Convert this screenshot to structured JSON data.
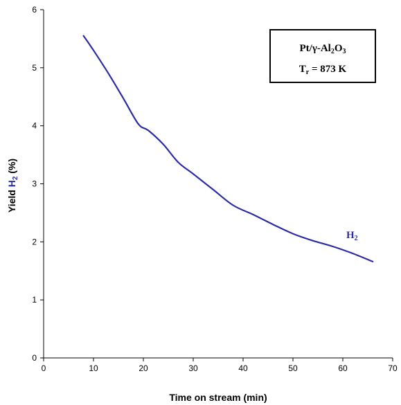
{
  "chart_data": {
    "type": "line",
    "xlabel": "Time on stream (min)",
    "ylabel": {
      "prefix": "Yield ",
      "species": "H",
      "subscript": "2",
      "suffix": " (%)"
    },
    "xlim": [
      0,
      70
    ],
    "ylim": [
      0,
      6
    ],
    "xticks": [
      0,
      10,
      20,
      30,
      40,
      50,
      60,
      70
    ],
    "yticks": [
      0,
      1,
      2,
      3,
      4,
      5,
      6
    ],
    "grid": false,
    "annotation_box": {
      "line1": {
        "a": "Pt/",
        "b": "γ",
        "c": "-Al",
        "d": "2",
        "e": "O",
        "f": "3"
      },
      "line2": {
        "a": "T",
        "b": "r",
        "c": " = 873 K"
      }
    },
    "series": [
      {
        "label": {
          "main": "H",
          "sub": "2"
        },
        "color": "#2b2ba3",
        "x": [
          8,
          10,
          13,
          16,
          19,
          21,
          24,
          27,
          30,
          34,
          38,
          42,
          46,
          50,
          54,
          58,
          62,
          66
        ],
        "y": [
          5.55,
          5.3,
          4.9,
          4.47,
          4.03,
          3.92,
          3.68,
          3.37,
          3.17,
          2.9,
          2.63,
          2.47,
          2.3,
          2.14,
          2.02,
          1.92,
          1.8,
          1.66
        ]
      }
    ]
  }
}
